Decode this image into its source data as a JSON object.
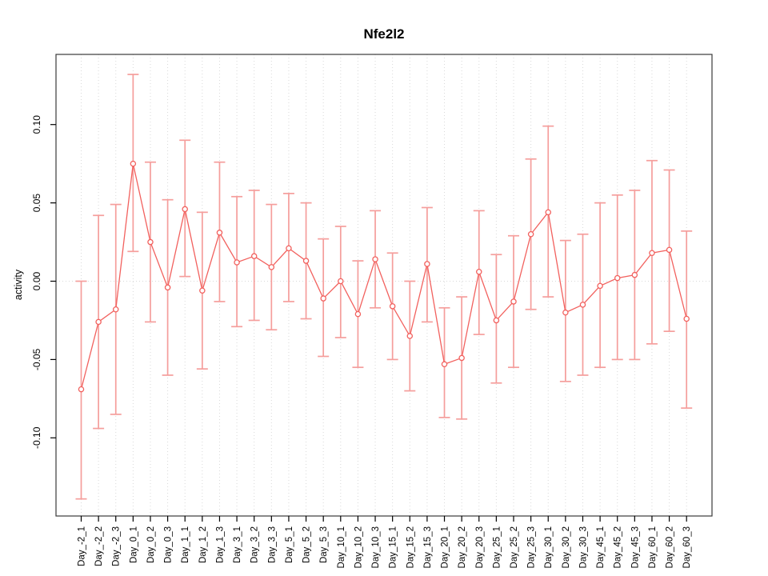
{
  "chart_data": {
    "type": "line",
    "title": "Nfe2l2",
    "xlabel": "",
    "ylabel": "activity",
    "categories": [
      "Day_-2_1",
      "Day_-2_2",
      "Day_-2_3",
      "Day_0_1",
      "Day_0_2",
      "Day_0_3",
      "Day_1_1",
      "Day_1_2",
      "Day_1_3",
      "Day_3_1",
      "Day_3_2",
      "Day_3_3",
      "Day_5_1",
      "Day_5_2",
      "Day_5_3",
      "Day_10_1",
      "Day_10_2",
      "Day_10_3",
      "Day_15_1",
      "Day_15_2",
      "Day_15_3",
      "Day_20_1",
      "Day_20_2",
      "Day_20_3",
      "Day_25_1",
      "Day_25_2",
      "Day_25_3",
      "Day_30_1",
      "Day_30_2",
      "Day_30_3",
      "Day_45_1",
      "Day_45_2",
      "Day_45_3",
      "Day_60_1",
      "Day_60_2",
      "Day_60_3"
    ],
    "series": [
      {
        "name": "activity",
        "values": [
          -0.069,
          -0.026,
          -0.018,
          0.075,
          0.025,
          -0.004,
          0.046,
          -0.006,
          0.031,
          0.012,
          0.016,
          0.009,
          0.021,
          0.013,
          -0.011,
          0.0,
          -0.021,
          0.014,
          -0.016,
          -0.035,
          0.011,
          -0.053,
          -0.049,
          0.006,
          -0.025,
          -0.013,
          0.03,
          0.044,
          -0.02,
          -0.015,
          -0.003,
          0.002,
          0.004,
          0.018,
          0.02,
          -0.024
        ],
        "upper": [
          0.0,
          0.042,
          0.049,
          0.132,
          0.076,
          0.052,
          0.09,
          0.044,
          0.076,
          0.054,
          0.058,
          0.049,
          0.056,
          0.05,
          0.027,
          0.035,
          0.013,
          0.045,
          0.018,
          0.0,
          0.047,
          -0.017,
          -0.01,
          0.045,
          0.017,
          0.029,
          0.078,
          0.099,
          0.026,
          0.03,
          0.05,
          0.055,
          0.058,
          0.077,
          0.071,
          0.032
        ],
        "lower": [
          -0.139,
          -0.094,
          -0.085,
          0.019,
          -0.026,
          -0.06,
          0.003,
          -0.056,
          -0.013,
          -0.029,
          -0.025,
          -0.031,
          -0.013,
          -0.024,
          -0.048,
          -0.036,
          -0.055,
          -0.017,
          -0.05,
          -0.07,
          -0.026,
          -0.087,
          -0.088,
          -0.034,
          -0.065,
          -0.055,
          -0.018,
          -0.01,
          -0.064,
          -0.06,
          -0.055,
          -0.05,
          -0.05,
          -0.04,
          -0.032,
          -0.081
        ]
      }
    ],
    "yticks": [
      0.1,
      0.05,
      0.0,
      -0.05,
      -0.1
    ],
    "ytick_labels": [
      "0.10",
      "0.05",
      "0.00",
      "-0.05",
      "-0.10"
    ],
    "ylim": [
      -0.15,
      0.145
    ],
    "grid": "vertical dotted gridlines at each category plus dotted horizontal line at y=0",
    "legend": "none",
    "colors": {
      "line": "#f2615e",
      "marker_fill": "#ffffff",
      "errorbar": "#f59e9c",
      "grid": "#d9d9d9",
      "zero_line": "#d9d9d9",
      "frame": "#3a3a3a",
      "tick": "#000000",
      "text": "#000000",
      "background": "#ffffff"
    }
  }
}
